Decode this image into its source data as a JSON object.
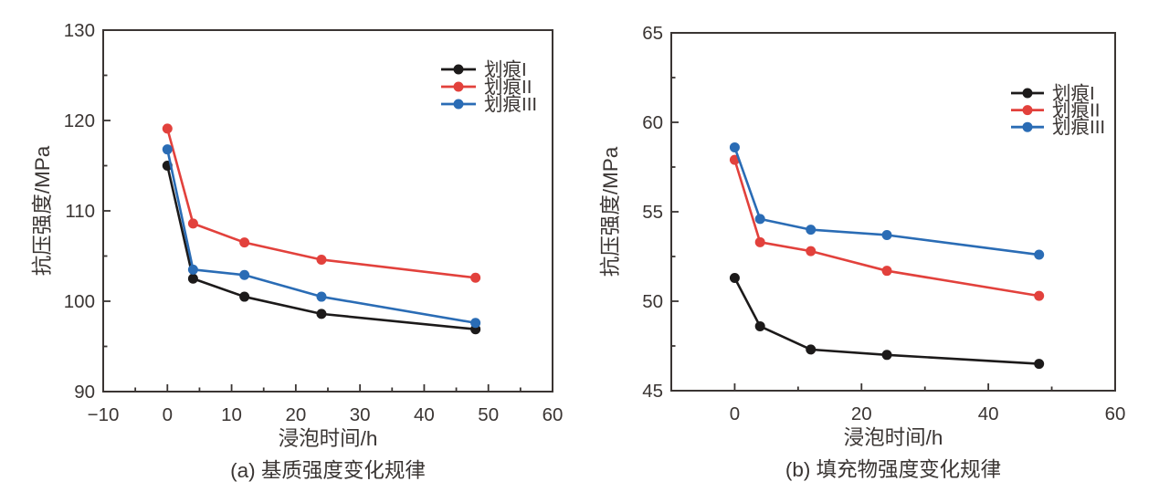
{
  "page": {
    "background": "#ffffff",
    "axis_color": "#3a3533",
    "text_color": "#3a3533"
  },
  "chart_data": [
    {
      "id": "a",
      "type": "line",
      "caption": "(a) 基质强度变化规律",
      "xlabel": "浸泡时间/h",
      "ylabel": "抗压强度/MPa",
      "xlim": [
        -10,
        60
      ],
      "ylim": [
        90,
        130
      ],
      "xtick_values": [
        -10,
        0,
        10,
        20,
        30,
        40,
        50,
        60
      ],
      "xtick_labels": [
        "−10",
        "0",
        "10",
        "20",
        "30",
        "40",
        "50",
        "60"
      ],
      "xtick_minor": [
        -5,
        5,
        15,
        25,
        35,
        45,
        55
      ],
      "ytick_values": [
        90,
        100,
        110,
        120,
        130
      ],
      "ytick_labels": [
        "90",
        "100",
        "110",
        "120",
        "130"
      ],
      "ytick_minor": [
        95,
        105,
        115,
        125
      ],
      "grid": false,
      "legend_position": "top-right",
      "x": [
        0,
        4,
        12,
        24,
        48
      ],
      "series": [
        {
          "name": "划痕I",
          "color": "#1c1a1a",
          "values": [
            115.0,
            102.5,
            100.5,
            98.6,
            96.9
          ]
        },
        {
          "name": "划痕II",
          "color": "#e2413c",
          "values": [
            119.1,
            108.6,
            106.5,
            104.6,
            102.6
          ]
        },
        {
          "name": "划痕III",
          "color": "#2a6cb5",
          "values": [
            116.8,
            103.5,
            102.9,
            100.5,
            97.6
          ]
        }
      ]
    },
    {
      "id": "b",
      "type": "line",
      "caption": "(b) 填充物强度变化规律",
      "xlabel": "浸泡时间/h",
      "ylabel": "抗压强度/MPa",
      "xlim": [
        -10,
        60
      ],
      "ylim": [
        45,
        65
      ],
      "xtick_values": [
        0,
        20,
        40,
        60
      ],
      "xtick_labels": [
        "0",
        "20",
        "40",
        "60"
      ],
      "xtick_minor": [
        10,
        30,
        50
      ],
      "ytick_values": [
        45,
        50,
        55,
        60,
        65
      ],
      "ytick_labels": [
        "45",
        "50",
        "55",
        "60",
        "65"
      ],
      "ytick_minor": [
        47.5,
        52.5,
        57.5,
        62.5
      ],
      "grid": false,
      "legend_position": "top-right",
      "x": [
        0,
        4,
        12,
        24,
        48
      ],
      "series": [
        {
          "name": "划痕I",
          "color": "#1c1a1a",
          "values": [
            51.3,
            48.6,
            47.3,
            47.0,
            46.5
          ]
        },
        {
          "name": "划痕II",
          "color": "#e2413c",
          "values": [
            57.9,
            53.3,
            52.8,
            51.7,
            50.3
          ]
        },
        {
          "name": "划痕III",
          "color": "#2a6cb5",
          "values": [
            58.6,
            54.6,
            54.0,
            53.7,
            52.6
          ]
        }
      ]
    }
  ]
}
